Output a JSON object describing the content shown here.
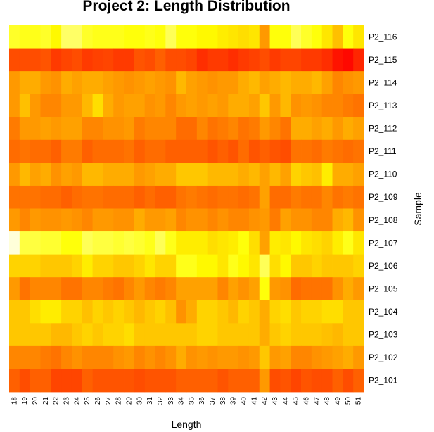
{
  "chart_data": {
    "type": "heatmap",
    "title": "Project 2: Length Distribution",
    "xlabel": "Length",
    "ylabel": "Sample",
    "x": [
      "18",
      "19",
      "20",
      "21",
      "22",
      "23",
      "24",
      "25",
      "26",
      "27",
      "28",
      "29",
      "30",
      "31",
      "32",
      "33",
      "34",
      "35",
      "36",
      "37",
      "38",
      "39",
      "40",
      "41",
      "42",
      "43",
      "44",
      "45",
      "46",
      "47",
      "48",
      "49",
      "50",
      "51"
    ],
    "y": [
      "P2_116",
      "P2_115",
      "P2_114",
      "P2_113",
      "P2_112",
      "P2_111",
      "P2_110",
      "P2_109",
      "P2_108",
      "P2_107",
      "P2_106",
      "P2_105",
      "P2_104",
      "P2_103",
      "P2_102",
      "P2_101"
    ],
    "colormap": [
      "#ff0000",
      "#ff8000",
      "#ffff00",
      "#ffffff"
    ],
    "values": [
      [
        0.72,
        0.7,
        0.7,
        0.72,
        0.65,
        0.8,
        0.8,
        0.72,
        0.7,
        0.7,
        0.7,
        0.68,
        0.68,
        0.7,
        0.68,
        0.78,
        0.68,
        0.68,
        0.65,
        0.65,
        0.62,
        0.6,
        0.58,
        0.6,
        0.4,
        0.68,
        0.68,
        0.78,
        0.72,
        0.68,
        0.6,
        0.5,
        0.68,
        0.6
      ],
      [
        0.2,
        0.2,
        0.2,
        0.22,
        0.15,
        0.18,
        0.2,
        0.15,
        0.17,
        0.18,
        0.15,
        0.15,
        0.22,
        0.2,
        0.25,
        0.2,
        0.2,
        0.18,
        0.12,
        0.15,
        0.15,
        0.12,
        0.15,
        0.17,
        0.2,
        0.15,
        0.18,
        0.18,
        0.15,
        0.15,
        0.12,
        0.05,
        0.02,
        0.1
      ],
      [
        0.4,
        0.45,
        0.45,
        0.4,
        0.38,
        0.45,
        0.42,
        0.45,
        0.45,
        0.42,
        0.4,
        0.38,
        0.4,
        0.42,
        0.4,
        0.38,
        0.48,
        0.42,
        0.4,
        0.38,
        0.4,
        0.4,
        0.45,
        0.48,
        0.42,
        0.45,
        0.48,
        0.45,
        0.45,
        0.48,
        0.42,
        0.35,
        0.38,
        0.4
      ],
      [
        0.4,
        0.5,
        0.4,
        0.35,
        0.35,
        0.4,
        0.4,
        0.48,
        0.58,
        0.45,
        0.4,
        0.42,
        0.42,
        0.38,
        0.4,
        0.35,
        0.4,
        0.42,
        0.4,
        0.42,
        0.4,
        0.45,
        0.45,
        0.42,
        0.52,
        0.4,
        0.48,
        0.38,
        0.4,
        0.38,
        0.35,
        0.35,
        0.32,
        0.3
      ],
      [
        0.32,
        0.4,
        0.4,
        0.42,
        0.4,
        0.42,
        0.42,
        0.35,
        0.35,
        0.38,
        0.38,
        0.4,
        0.32,
        0.35,
        0.35,
        0.35,
        0.28,
        0.28,
        0.35,
        0.3,
        0.32,
        0.35,
        0.3,
        0.32,
        0.4,
        0.35,
        0.3,
        0.45,
        0.45,
        0.42,
        0.45,
        0.4,
        0.45,
        0.42
      ],
      [
        0.28,
        0.3,
        0.28,
        0.28,
        0.25,
        0.32,
        0.32,
        0.25,
        0.28,
        0.28,
        0.28,
        0.3,
        0.25,
        0.28,
        0.28,
        0.25,
        0.25,
        0.25,
        0.25,
        0.22,
        0.25,
        0.22,
        0.28,
        0.22,
        0.25,
        0.22,
        0.2,
        0.3,
        0.3,
        0.28,
        0.32,
        0.3,
        0.28,
        0.3
      ],
      [
        0.4,
        0.48,
        0.42,
        0.45,
        0.38,
        0.42,
        0.4,
        0.48,
        0.48,
        0.45,
        0.45,
        0.45,
        0.4,
        0.42,
        0.45,
        0.45,
        0.52,
        0.52,
        0.52,
        0.48,
        0.48,
        0.48,
        0.45,
        0.48,
        0.42,
        0.48,
        0.42,
        0.55,
        0.52,
        0.5,
        0.62,
        0.45,
        0.45,
        0.42
      ],
      [
        0.3,
        0.3,
        0.3,
        0.28,
        0.28,
        0.25,
        0.28,
        0.3,
        0.3,
        0.28,
        0.28,
        0.28,
        0.25,
        0.28,
        0.25,
        0.25,
        0.3,
        0.32,
        0.3,
        0.28,
        0.3,
        0.3,
        0.28,
        0.3,
        0.42,
        0.28,
        0.28,
        0.32,
        0.3,
        0.3,
        0.35,
        0.3,
        0.32,
        0.3
      ],
      [
        0.4,
        0.35,
        0.4,
        0.38,
        0.38,
        0.4,
        0.38,
        0.35,
        0.4,
        0.4,
        0.38,
        0.38,
        0.45,
        0.4,
        0.4,
        0.42,
        0.35,
        0.38,
        0.38,
        0.35,
        0.38,
        0.35,
        0.35,
        0.38,
        0.4,
        0.32,
        0.42,
        0.38,
        0.38,
        0.35,
        0.35,
        0.45,
        0.48,
        0.38
      ],
      [
        0.95,
        0.75,
        0.75,
        0.73,
        0.73,
        0.68,
        0.68,
        0.78,
        0.75,
        0.75,
        0.73,
        0.75,
        0.73,
        0.7,
        0.78,
        0.7,
        0.62,
        0.62,
        0.62,
        0.58,
        0.6,
        0.62,
        0.68,
        0.58,
        0.42,
        0.62,
        0.6,
        0.65,
        0.6,
        0.58,
        0.55,
        0.62,
        0.7,
        0.6
      ],
      [
        0.55,
        0.55,
        0.55,
        0.52,
        0.52,
        0.52,
        0.55,
        0.62,
        0.55,
        0.55,
        0.52,
        0.52,
        0.55,
        0.6,
        0.55,
        0.55,
        0.7,
        0.7,
        0.65,
        0.65,
        0.6,
        0.7,
        0.65,
        0.6,
        0.78,
        0.58,
        0.65,
        0.52,
        0.52,
        0.55,
        0.52,
        0.52,
        0.52,
        0.55
      ],
      [
        0.4,
        0.3,
        0.35,
        0.35,
        0.35,
        0.3,
        0.3,
        0.35,
        0.35,
        0.32,
        0.3,
        0.35,
        0.4,
        0.35,
        0.32,
        0.35,
        0.42,
        0.42,
        0.42,
        0.42,
        0.35,
        0.42,
        0.38,
        0.42,
        0.68,
        0.4,
        0.38,
        0.28,
        0.3,
        0.3,
        0.3,
        0.38,
        0.45,
        0.4
      ],
      [
        0.52,
        0.52,
        0.58,
        0.62,
        0.62,
        0.55,
        0.55,
        0.5,
        0.55,
        0.52,
        0.55,
        0.52,
        0.48,
        0.52,
        0.55,
        0.5,
        0.38,
        0.45,
        0.55,
        0.55,
        0.52,
        0.48,
        0.55,
        0.52,
        0.45,
        0.55,
        0.58,
        0.52,
        0.55,
        0.55,
        0.58,
        0.58,
        0.52,
        0.52
      ],
      [
        0.52,
        0.52,
        0.52,
        0.52,
        0.48,
        0.48,
        0.52,
        0.55,
        0.52,
        0.55,
        0.55,
        0.58,
        0.52,
        0.52,
        0.52,
        0.52,
        0.52,
        0.52,
        0.55,
        0.55,
        0.52,
        0.52,
        0.52,
        0.52,
        0.45,
        0.52,
        0.55,
        0.52,
        0.52,
        0.52,
        0.5,
        0.48,
        0.52,
        0.52
      ],
      [
        0.35,
        0.35,
        0.35,
        0.32,
        0.3,
        0.35,
        0.38,
        0.35,
        0.35,
        0.35,
        0.38,
        0.4,
        0.35,
        0.38,
        0.35,
        0.38,
        0.45,
        0.38,
        0.4,
        0.38,
        0.4,
        0.4,
        0.38,
        0.4,
        0.52,
        0.4,
        0.42,
        0.35,
        0.35,
        0.38,
        0.4,
        0.42,
        0.45,
        0.4
      ],
      [
        0.25,
        0.2,
        0.25,
        0.25,
        0.18,
        0.18,
        0.18,
        0.25,
        0.22,
        0.22,
        0.22,
        0.22,
        0.2,
        0.22,
        0.22,
        0.22,
        0.25,
        0.25,
        0.25,
        0.25,
        0.22,
        0.25,
        0.25,
        0.25,
        0.4,
        0.2,
        0.22,
        0.18,
        0.22,
        0.2,
        0.2,
        0.25,
        0.2,
        0.25
      ]
    ]
  }
}
